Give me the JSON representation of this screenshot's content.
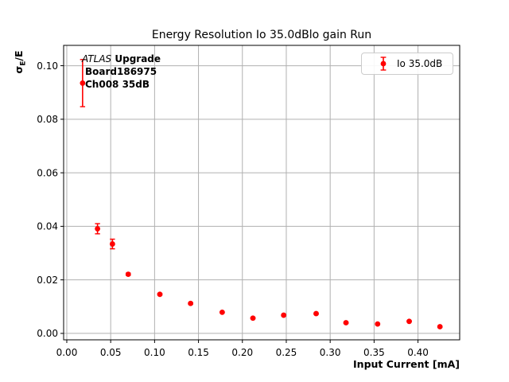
{
  "colors": {
    "series": "#ff0000",
    "grid": "#b0b0b0",
    "axes": "#000000",
    "legend_border": "#cccccc"
  },
  "figure": {
    "title": "Energy Resolution Io 35.0dBlo gain Run",
    "xlabel": "Input Current [mA]",
    "ylabel": {
      "sigma": "σ",
      "sub": "E",
      "rest": "/E"
    },
    "annotation": {
      "experiment": "ATLAS",
      "experiment_suffix": " Upgrade",
      "board": "Board186975",
      "channel": "Ch008 35dB"
    },
    "legend": {
      "label": "Io 35.0dB"
    }
  },
  "chart_data": {
    "type": "scatter",
    "title": "Energy Resolution Io 35.0dBlo gain Run",
    "xlabel": "Input Current [mA]",
    "ylabel": "sigma_E/E",
    "grid": true,
    "legend_position": "upper right",
    "xlim": [
      -0.0036,
      0.4475
    ],
    "ylim": [
      -0.0024,
      0.1076
    ],
    "x_ticks": [
      {
        "value": 0.0,
        "label": "0.00"
      },
      {
        "value": 0.05,
        "label": "0.05"
      },
      {
        "value": 0.1,
        "label": "0.10"
      },
      {
        "value": 0.15,
        "label": "0.15"
      },
      {
        "value": 0.2,
        "label": "0.20"
      },
      {
        "value": 0.25,
        "label": "0.25"
      },
      {
        "value": 0.3,
        "label": "0.30"
      },
      {
        "value": 0.35,
        "label": "0.35"
      },
      {
        "value": 0.4,
        "label": "0.40"
      }
    ],
    "y_ticks": [
      {
        "value": 0.0,
        "label": "0.00"
      },
      {
        "value": 0.02,
        "label": "0.02"
      },
      {
        "value": 0.04,
        "label": "0.04"
      },
      {
        "value": 0.06,
        "label": "0.06"
      },
      {
        "value": 0.08,
        "label": "0.08"
      },
      {
        "value": 0.1,
        "label": "0.10"
      }
    ],
    "series": [
      {
        "name": "Io 35.0dB",
        "color": "#ff0000",
        "marker": "circle",
        "points": [
          {
            "x": 0.018,
            "y": 0.0935,
            "yerr": 0.0088
          },
          {
            "x": 0.035,
            "y": 0.0391,
            "yerr": 0.0019
          },
          {
            "x": 0.052,
            "y": 0.0334,
            "yerr": 0.0018
          },
          {
            "x": 0.07,
            "y": 0.0221,
            "yerr": 0.0004
          },
          {
            "x": 0.106,
            "y": 0.0146,
            "yerr": 0.0003
          },
          {
            "x": 0.141,
            "y": 0.0112,
            "yerr": 0.0003
          },
          {
            "x": 0.177,
            "y": 0.0079,
            "yerr": 0.0002
          },
          {
            "x": 0.212,
            "y": 0.0057,
            "yerr": 0.0002
          },
          {
            "x": 0.247,
            "y": 0.0068,
            "yerr": 0.0002
          },
          {
            "x": 0.284,
            "y": 0.0074,
            "yerr": 0.0002
          },
          {
            "x": 0.318,
            "y": 0.004,
            "yerr": 0.0002
          },
          {
            "x": 0.354,
            "y": 0.0035,
            "yerr": 0.0002
          },
          {
            "x": 0.39,
            "y": 0.0045,
            "yerr": 0.0002
          },
          {
            "x": 0.425,
            "y": 0.0025,
            "yerr": 0.0002
          }
        ]
      }
    ]
  }
}
